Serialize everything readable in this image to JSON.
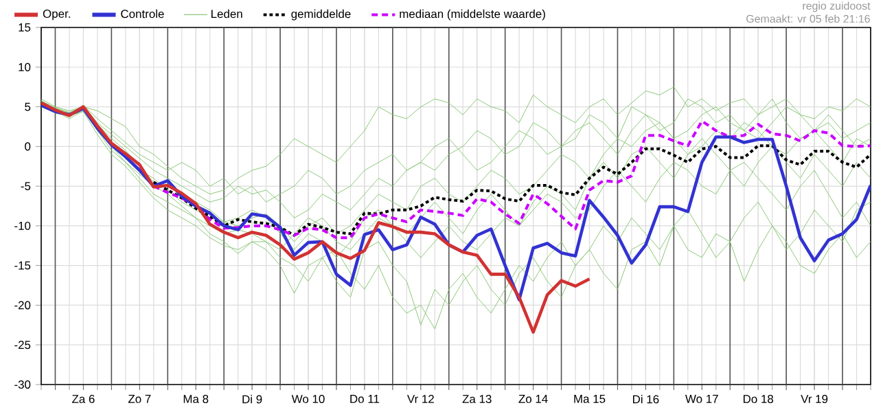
{
  "chart_data": {
    "type": "line",
    "annotations": [
      "regio zuidoost",
      "Gemaakt: vr 05 feb 21:16"
    ],
    "categories": [
      null,
      null,
      null,
      "Za 6",
      null,
      null,
      null,
      "Zo 7",
      null,
      null,
      null,
      "Ma 8",
      null,
      null,
      null,
      "Di 9",
      null,
      null,
      null,
      "Wo 10",
      null,
      null,
      null,
      "Do 11",
      null,
      null,
      null,
      "Vr 12",
      null,
      null,
      null,
      "Za 13",
      null,
      null,
      null,
      "Zo 14",
      null,
      null,
      null,
      "Ma 15",
      null,
      null,
      null,
      "Di 16",
      null,
      null,
      null,
      "Wo 17",
      null,
      null,
      null,
      "Do 18",
      null,
      null,
      null,
      "Vr 19",
      null,
      null,
      null,
      null
    ],
    "ylim": [
      -30,
      15
    ],
    "yticks": [
      -30,
      -25,
      -20,
      -15,
      -10,
      -5,
      0,
      5,
      10,
      15
    ],
    "grid": true,
    "legend": "top",
    "series": [
      {
        "name": "Oper.",
        "color": "#d23232",
        "values": [
          5.5,
          4.6,
          3.9,
          5.0,
          2.6,
          0.4,
          -0.9,
          -2.3,
          -5.1,
          -4.9,
          -5.9,
          -7.2,
          -9.8,
          -10.8,
          -11.5,
          -10.8,
          -11.2,
          -12.4,
          -14.2,
          -13.4,
          -12.0,
          -13.4,
          -14.1,
          -13.1,
          -9.6,
          -10.1,
          -10.8,
          -10.8,
          -11.0,
          -12.4,
          -13.3,
          -13.7,
          -16.1,
          -16.1,
          -19.0,
          -23.4,
          -18.7,
          -16.9,
          -17.6,
          -16.7,
          null,
          null,
          null,
          null,
          null,
          null,
          null,
          null,
          null,
          null,
          null,
          null,
          null,
          null,
          null,
          null,
          null,
          null,
          null,
          null
        ]
      },
      {
        "name": "Controle",
        "color": "#3232d2",
        "values": [
          5.2,
          4.4,
          4.0,
          4.8,
          2.3,
          0.2,
          -1.3,
          -3.0,
          -5.0,
          -4.3,
          -6.3,
          -7.5,
          -8.4,
          -10.0,
          -10.5,
          -8.5,
          -8.8,
          -10.2,
          -13.7,
          -12.1,
          -12.0,
          -16.1,
          -17.5,
          -11.1,
          -10.5,
          -13.0,
          -12.4,
          -8.9,
          -9.8,
          -12.4,
          -13.3,
          -11.2,
          -10.4,
          -15.0,
          -19.3,
          -12.8,
          -12.2,
          -13.4,
          -13.8,
          -6.8,
          -8.9,
          -11.2,
          -14.7,
          -12.4,
          -7.6,
          -7.6,
          -8.2,
          -2.0,
          1.2,
          1.2,
          0.5,
          0.9,
          0.9,
          -5.0,
          -11.5,
          -14.4,
          -11.8,
          -11.0,
          -9.2,
          -4.9
        ]
      },
      {
        "name": "Leden",
        "color": "#8cc878",
        "values": [
          6,
          5,
          4.5,
          5,
          4.5,
          3.5,
          2.5,
          0,
          -1,
          -2.5,
          -4,
          -5,
          -6,
          -5.5,
          -4,
          -3,
          -2.5,
          -1,
          1,
          0,
          -1,
          -2,
          0,
          2,
          5,
          4,
          3.5,
          5,
          6,
          5.5,
          4,
          6,
          5,
          4.5,
          3,
          6.5,
          5,
          4,
          3,
          5,
          6,
          4,
          5.5,
          7,
          6.5,
          7.5,
          5,
          6,
          4.5,
          5.5,
          6,
          4,
          5,
          6,
          4,
          3.5,
          5,
          4.5,
          6,
          5
        ]
      },
      {
        "color": "#8cc878",
        "values": [
          5.5,
          4.5,
          3.5,
          4.5,
          2,
          0,
          -2,
          -4,
          -6,
          -7,
          -8,
          -9,
          -11,
          -12,
          -13.5,
          -12,
          -13,
          -15,
          -18.5,
          -15,
          -14,
          -17,
          -19,
          -13,
          -12,
          -15,
          -17,
          -22.5,
          -18,
          -20,
          -17,
          -15,
          -18,
          -20,
          -16,
          -14,
          -17,
          -19,
          -15,
          -13,
          -16,
          -18,
          -13,
          -12,
          -15,
          -10,
          -13,
          -14,
          -11,
          -12,
          -17,
          -13,
          -10,
          -12,
          -15,
          -16,
          -13,
          -11,
          -14,
          -12
        ]
      },
      {
        "color": "#8cc878",
        "values": [
          5.8,
          4.8,
          4.2,
          4.7,
          2.5,
          0.5,
          -1,
          -3,
          -4,
          -5.5,
          -7,
          -8,
          -9,
          -9.5,
          -10,
          -9,
          -8.5,
          -10,
          -12,
          -10,
          -9,
          -11,
          -10,
          -8,
          -6,
          -7,
          -8,
          -5,
          -4,
          -6,
          -7,
          -5,
          -3,
          -4,
          -6,
          -5,
          -3,
          -1,
          -2,
          -4,
          -1,
          1,
          0,
          2,
          3,
          1,
          -1,
          0,
          2,
          1,
          3,
          2,
          0,
          -1,
          1,
          2,
          0,
          -2,
          1,
          0
        ]
      },
      {
        "color": "#8cc878",
        "values": [
          5,
          4.2,
          3.8,
          4.6,
          2,
          -0.5,
          -2,
          -3.5,
          -5,
          -6,
          -7.5,
          -9,
          -10,
          -11,
          -10.5,
          -11,
          -12,
          -13,
          -11,
          -9,
          -10,
          -12,
          -13,
          -11,
          -9,
          -10,
          -12,
          -14,
          -12,
          -10,
          -12,
          -13,
          -11,
          -9,
          -10,
          -8,
          -6,
          -7,
          -9,
          -8,
          -5,
          -3,
          -5,
          -7,
          -4,
          -2,
          -3,
          -5,
          -6,
          -3,
          -2,
          -4,
          -6,
          -8,
          -5,
          -3,
          -6,
          -9,
          -7,
          -10
        ]
      },
      {
        "color": "#8cc878",
        "values": [
          5.3,
          4.4,
          4.1,
          5.2,
          3.5,
          2,
          0.5,
          -1,
          -2,
          -3,
          -2,
          -3,
          -5,
          -4,
          -6,
          -5,
          -7,
          -6,
          -5,
          -3,
          -4,
          -6,
          -5,
          -3,
          -2,
          -1,
          -3,
          -2,
          0,
          1,
          -1,
          -3,
          -2,
          0,
          2,
          1,
          -1,
          0,
          2,
          3,
          1,
          -1,
          2,
          4,
          3,
          1,
          2,
          4,
          5,
          3,
          2,
          4,
          6,
          3,
          1,
          2,
          4,
          2,
          0,
          1
        ]
      },
      {
        "color": "#8cc878",
        "values": [
          5.6,
          4.7,
          3.9,
          4.4,
          1.5,
          -1,
          -2.5,
          -4.5,
          -6.5,
          -8,
          -9,
          -10,
          -11.5,
          -12.5,
          -13,
          -12,
          -12,
          -14,
          -15,
          -17,
          -14,
          -13,
          -16,
          -18,
          -15,
          -19,
          -21,
          -20,
          -23,
          -18,
          -16,
          -19,
          -21,
          -18,
          -15,
          -17,
          -14,
          -12,
          -15,
          -13,
          -10,
          -12,
          -9,
          -11,
          -13,
          -10,
          -8,
          -11,
          -14,
          -12,
          -9,
          -7,
          -10,
          -13,
          -11,
          -8,
          -10,
          -12,
          -8,
          -7
        ]
      },
      {
        "color": "#8cc878",
        "values": [
          5.4,
          4.3,
          4,
          4.9,
          2.8,
          1,
          -0.5,
          -2.5,
          -4.5,
          -5,
          -6,
          -7,
          -8,
          -9.5,
          -9,
          -8,
          -9,
          -11,
          -13,
          -11,
          -12,
          -14,
          -12,
          -9,
          -8,
          -10,
          -11,
          -9,
          -7,
          -9,
          -11,
          -8,
          -6,
          -8,
          -10,
          -7,
          -5,
          -6,
          -8,
          -4,
          -2,
          -4,
          -1,
          0,
          -2,
          -4,
          -1,
          1,
          -1,
          -3,
          -5,
          -2,
          0,
          -2,
          -4,
          -1,
          -3,
          -5,
          -2,
          -4
        ]
      },
      {
        "color": "#8cc878",
        "values": [
          5.7,
          4.9,
          4.3,
          5.1,
          3,
          1.5,
          0,
          -1.5,
          -3,
          -4,
          -5,
          -6,
          -7,
          -6.5,
          -5,
          -6,
          -5.5,
          -7,
          -9,
          -8,
          -6,
          -7,
          -8,
          -6,
          -4,
          -5,
          -3,
          -2,
          -3,
          -1,
          0,
          2,
          1,
          -1,
          0,
          3,
          2,
          0,
          1,
          4,
          3,
          1,
          5,
          4,
          2,
          3,
          6,
          5,
          3,
          4,
          2,
          1,
          3,
          5,
          4,
          2,
          3,
          1,
          2,
          3
        ]
      },
      {
        "name": "gemiddelde",
        "color": "#000000",
        "line_style": "dotted",
        "values": [
          null,
          null,
          null,
          null,
          null,
          null,
          null,
          null,
          -4.5,
          -5.5,
          -6.5,
          -7.8,
          -8.8,
          -10.0,
          -9.2,
          -9.5,
          -9.7,
          -10.2,
          -11.2,
          -9.8,
          -10.2,
          -10.8,
          -11.0,
          -8.4,
          -8.5,
          -8.0,
          -8.0,
          -7.5,
          -6.4,
          -6.7,
          -6.9,
          -5.5,
          -5.6,
          -6.6,
          -6.9,
          -4.9,
          -4.9,
          -5.8,
          -6.1,
          -4.0,
          -2.6,
          -3.5,
          -2.0,
          -0.3,
          -0.3,
          -1.1,
          -2.0,
          -0.3,
          0.0,
          -1.4,
          -1.4,
          0.1,
          0.1,
          -1.7,
          -2.3,
          -0.6,
          -0.6,
          -2.0,
          -2.6,
          -1.0
        ]
      },
      {
        "name": "mediaan (middelste waarde)",
        "color": "#cc00ff",
        "line_style": "dashed",
        "values": [
          null,
          null,
          null,
          null,
          null,
          null,
          null,
          null,
          -5.0,
          -5.8,
          -6.5,
          -7.5,
          -9.2,
          -10.3,
          -10.2,
          -10.0,
          -10.0,
          -10.5,
          -11.2,
          -10.3,
          -10.5,
          -11.5,
          -11.5,
          -9.0,
          -8.5,
          -9.0,
          -9.5,
          -8.0,
          -8.2,
          -8.4,
          -8.7,
          -6.6,
          -7.0,
          -8.5,
          -9.7,
          -6.0,
          -7.2,
          -8.8,
          -10.4,
          -5.5,
          -4.3,
          -4.5,
          -3.7,
          1.4,
          1.4,
          0.7,
          0.1,
          3.2,
          2.0,
          1.2,
          1.4,
          2.8,
          1.6,
          1.4,
          0.7,
          2.0,
          1.7,
          0.1,
          0.0,
          0.1
        ]
      }
    ]
  }
}
